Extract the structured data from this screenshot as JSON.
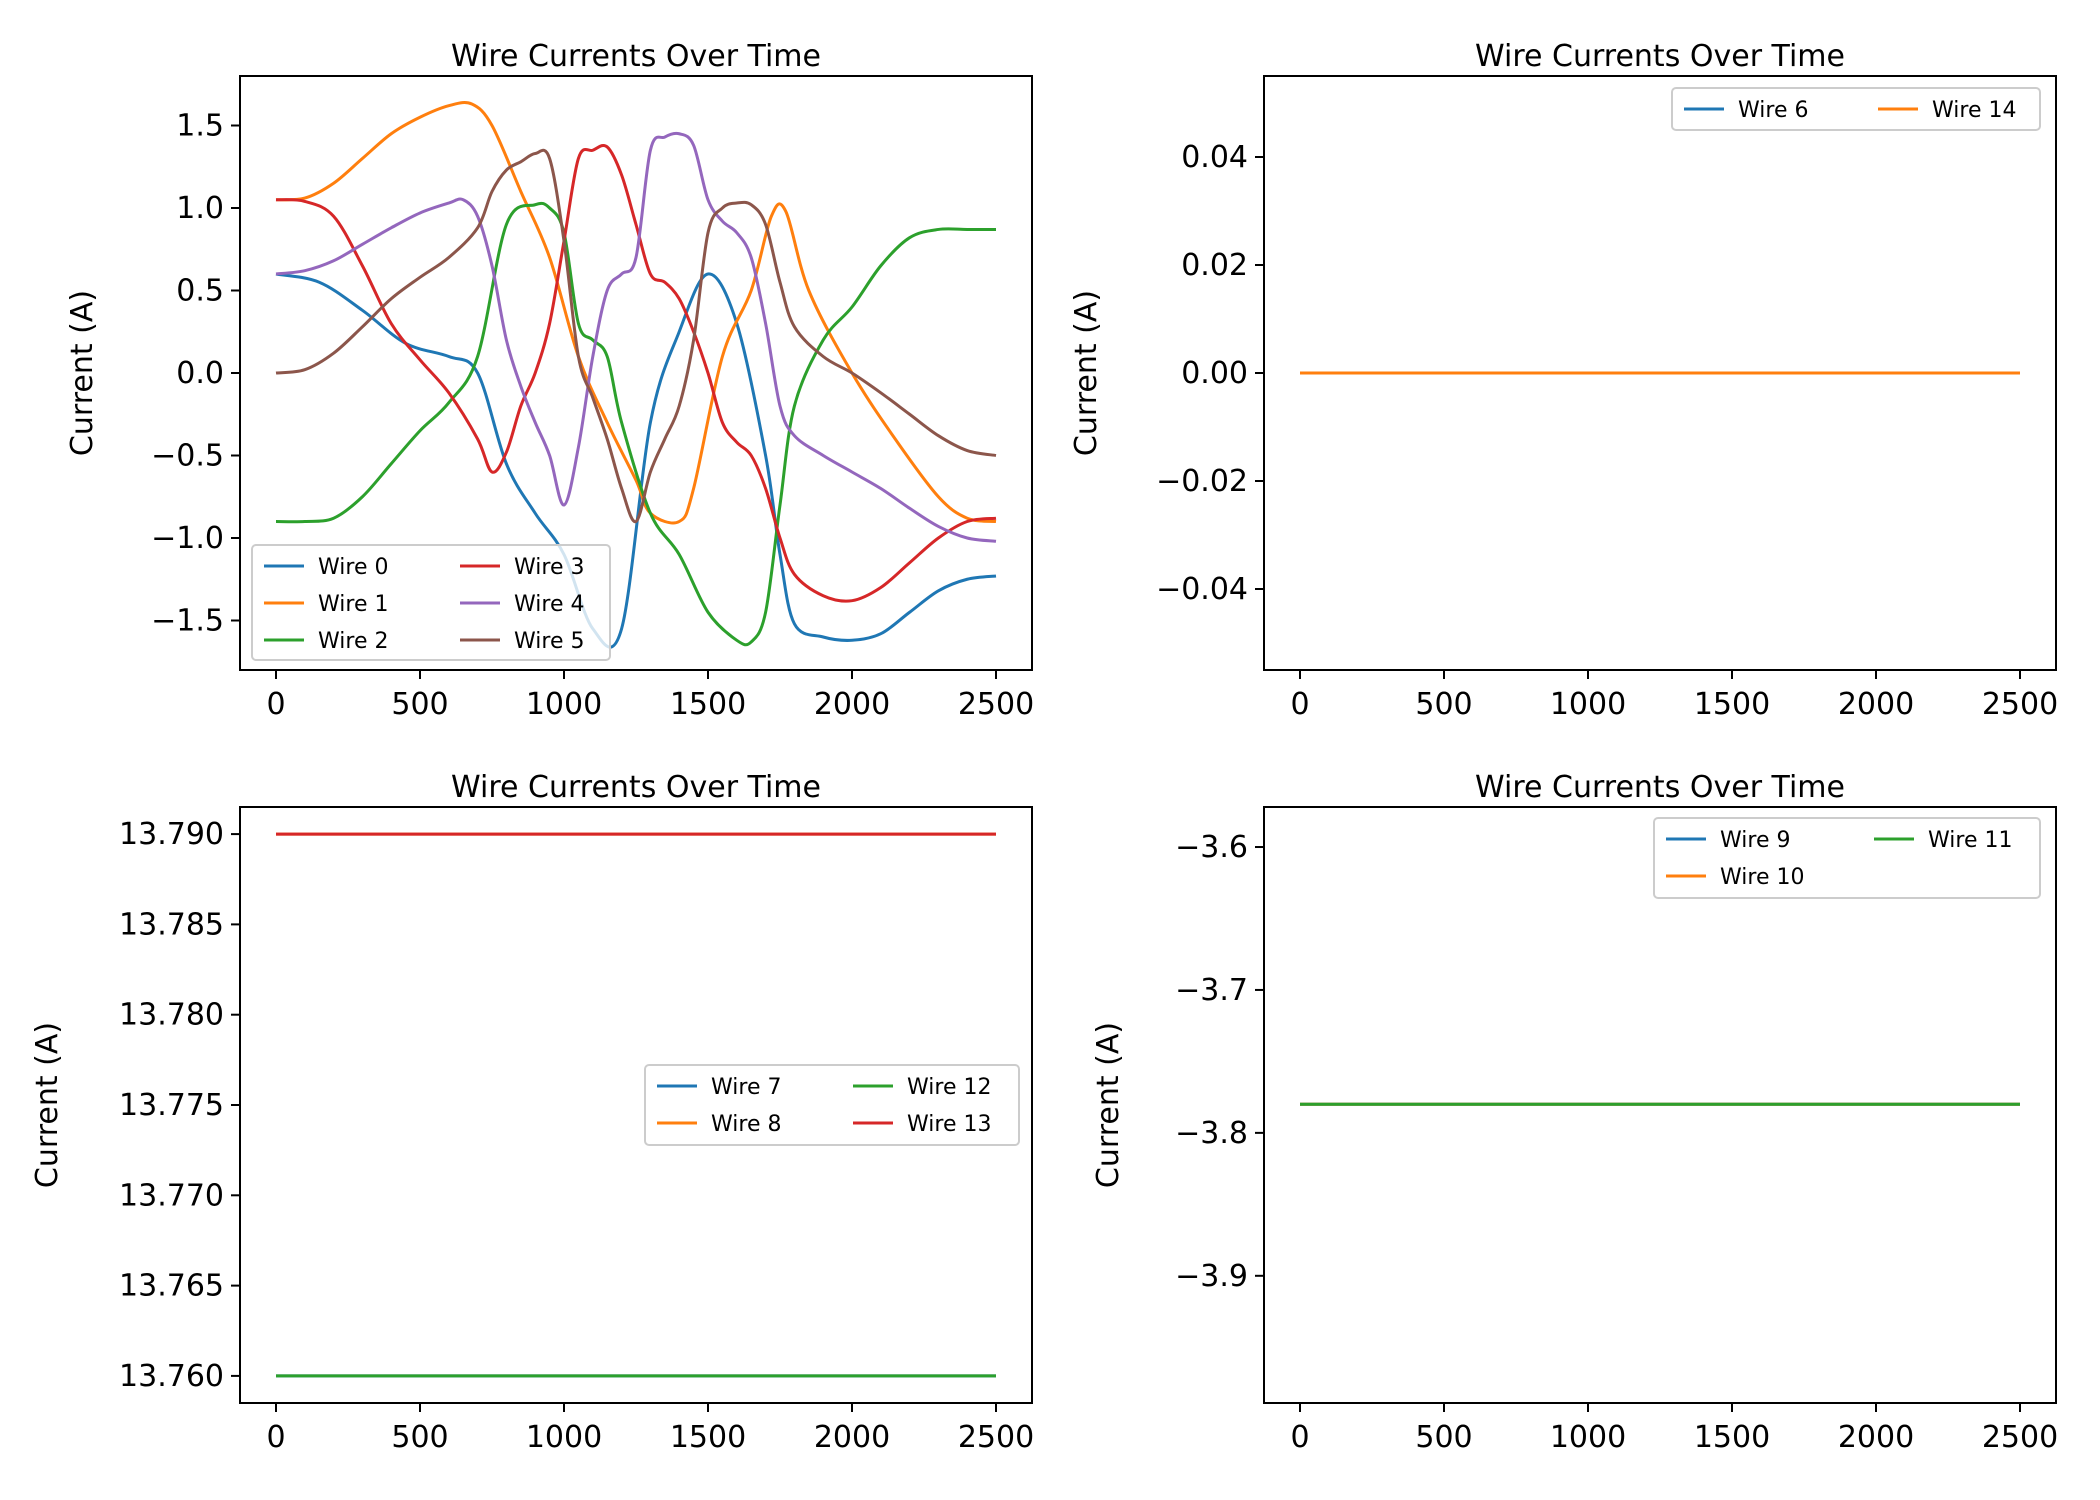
{
  "chart_data": [
    {
      "type": "line",
      "title": "Wire Currents Over Time",
      "xlabel": "",
      "ylabel": "Current (A)",
      "xlim": [
        -125,
        2625
      ],
      "ylim": [
        -1.8,
        1.8
      ],
      "xticks": [
        0,
        500,
        1000,
        1500,
        2000,
        2500
      ],
      "xtick_labels": [
        "0",
        "500",
        "1000",
        "1500",
        "2000",
        "2500"
      ],
      "yticks": [
        -1.5,
        -1.0,
        -0.5,
        0.0,
        0.5,
        1.0,
        1.5
      ],
      "ytick_labels": [
        "−1.5",
        "−1.0",
        "−0.5",
        "0.0",
        "0.5",
        "1.0",
        "1.5"
      ],
      "grid": false,
      "legend_position": "lower-left",
      "legend_columns": 2,
      "series": [
        {
          "name": "Wire 0",
          "color": "#1f77b4",
          "x": [
            0,
            150,
            300,
            450,
            600,
            700,
            800,
            900,
            1000,
            1100,
            1200,
            1300,
            1400,
            1500,
            1600,
            1700,
            1750,
            1800,
            1900,
            2000,
            2100,
            2200,
            2300,
            2400,
            2500
          ],
          "y": [
            0.6,
            0.55,
            0.38,
            0.18,
            0.1,
            0.0,
            -0.55,
            -0.85,
            -1.1,
            -1.55,
            -1.55,
            -0.3,
            0.25,
            0.6,
            0.3,
            -0.5,
            -1.1,
            -1.52,
            -1.6,
            -1.62,
            -1.58,
            -1.45,
            -1.32,
            -1.25,
            -1.23
          ]
        },
        {
          "name": "Wire 1",
          "color": "#ff7f0e",
          "x": [
            0,
            100,
            200,
            300,
            400,
            500,
            600,
            680,
            750,
            850,
            950,
            1050,
            1150,
            1250,
            1300,
            1400,
            1450,
            1550,
            1650,
            1720,
            1770,
            1850,
            2000,
            2150,
            2300,
            2400,
            2500
          ],
          "y": [
            1.05,
            1.06,
            1.15,
            1.3,
            1.45,
            1.55,
            1.62,
            1.63,
            1.5,
            1.1,
            0.7,
            0.1,
            -0.3,
            -0.65,
            -0.85,
            -0.9,
            -0.7,
            0.1,
            0.5,
            0.95,
            0.98,
            0.5,
            0.0,
            -0.4,
            -0.75,
            -0.88,
            -0.9
          ]
        },
        {
          "name": "Wire 2",
          "color": "#2ca02c",
          "x": [
            0,
            100,
            200,
            300,
            400,
            500,
            600,
            700,
            800,
            900,
            950,
            1000,
            1050,
            1100,
            1150,
            1200,
            1300,
            1400,
            1500,
            1600,
            1650,
            1700,
            1750,
            1800,
            1900,
            2000,
            2100,
            2200,
            2300,
            2400,
            2500
          ],
          "y": [
            -0.9,
            -0.9,
            -0.88,
            -0.75,
            -0.55,
            -0.35,
            -0.18,
            0.1,
            0.9,
            1.02,
            1.0,
            0.85,
            0.3,
            0.2,
            0.1,
            -0.3,
            -0.85,
            -1.1,
            -1.45,
            -1.62,
            -1.63,
            -1.45,
            -0.8,
            -0.2,
            0.2,
            0.4,
            0.65,
            0.82,
            0.87,
            0.87,
            0.87
          ]
        },
        {
          "name": "Wire 3",
          "color": "#d62728",
          "x": [
            0,
            100,
            200,
            300,
            400,
            500,
            600,
            700,
            750,
            800,
            850,
            900,
            950,
            1000,
            1050,
            1100,
            1150,
            1200,
            1250,
            1300,
            1350,
            1400,
            1450,
            1500,
            1550,
            1600,
            1650,
            1700,
            1750,
            1800,
            1900,
            2000,
            2100,
            2200,
            2300,
            2400,
            2500
          ],
          "y": [
            1.05,
            1.04,
            0.95,
            0.65,
            0.3,
            0.08,
            -0.12,
            -0.4,
            -0.6,
            -0.48,
            -0.2,
            0.0,
            0.3,
            0.8,
            1.3,
            1.35,
            1.37,
            1.2,
            0.9,
            0.6,
            0.55,
            0.45,
            0.25,
            0.0,
            -0.3,
            -0.42,
            -0.5,
            -0.7,
            -1.0,
            -1.22,
            -1.35,
            -1.38,
            -1.3,
            -1.15,
            -1.0,
            -0.9,
            -0.88
          ]
        },
        {
          "name": "Wire 4",
          "color": "#9467bd",
          "x": [
            0,
            100,
            200,
            300,
            400,
            500,
            600,
            650,
            700,
            750,
            800,
            850,
            900,
            950,
            1000,
            1050,
            1100,
            1150,
            1200,
            1250,
            1300,
            1350,
            1400,
            1450,
            1500,
            1550,
            1600,
            1650,
            1700,
            1750,
            1800,
            1900,
            2000,
            2100,
            2200,
            2300,
            2400,
            2500
          ],
          "y": [
            0.6,
            0.62,
            0.68,
            0.78,
            0.88,
            0.97,
            1.03,
            1.05,
            0.95,
            0.65,
            0.2,
            -0.08,
            -0.3,
            -0.5,
            -0.8,
            -0.45,
            0.1,
            0.5,
            0.6,
            0.7,
            1.35,
            1.43,
            1.45,
            1.38,
            1.05,
            0.92,
            0.85,
            0.7,
            0.3,
            -0.2,
            -0.38,
            -0.5,
            -0.6,
            -0.7,
            -0.82,
            -0.93,
            -1.0,
            -1.02
          ]
        },
        {
          "name": "Wire 5",
          "color": "#8c564b",
          "x": [
            0,
            100,
            200,
            300,
            400,
            500,
            600,
            700,
            750,
            800,
            850,
            900,
            950,
            1000,
            1050,
            1100,
            1150,
            1200,
            1250,
            1300,
            1350,
            1400,
            1450,
            1500,
            1550,
            1600,
            1650,
            1700,
            1750,
            1800,
            1900,
            2000,
            2100,
            2200,
            2300,
            2400,
            2500
          ],
          "y": [
            0.0,
            0.02,
            0.12,
            0.28,
            0.45,
            0.58,
            0.7,
            0.88,
            1.1,
            1.23,
            1.28,
            1.33,
            1.3,
            0.8,
            0.1,
            -0.15,
            -0.4,
            -0.7,
            -0.9,
            -0.6,
            -0.4,
            -0.2,
            0.2,
            0.85,
            1.0,
            1.03,
            1.02,
            0.9,
            0.55,
            0.28,
            0.1,
            0.0,
            -0.12,
            -0.25,
            -0.38,
            -0.47,
            -0.5
          ]
        }
      ]
    },
    {
      "type": "line",
      "title": "Wire Currents Over Time",
      "xlabel": "",
      "ylabel": "Current (A)",
      "xlim": [
        -125,
        2625
      ],
      "ylim": [
        -0.055,
        0.055
      ],
      "xticks": [
        0,
        500,
        1000,
        1500,
        2000,
        2500
      ],
      "xtick_labels": [
        "0",
        "500",
        "1000",
        "1500",
        "2000",
        "2500"
      ],
      "yticks": [
        -0.04,
        -0.02,
        0.0,
        0.02,
        0.04
      ],
      "ytick_labels": [
        "−0.04",
        "−0.02",
        "0.00",
        "0.02",
        "0.04"
      ],
      "grid": false,
      "legend_position": "upper-right",
      "legend_columns": 2,
      "series": [
        {
          "name": "Wire 6",
          "color": "#1f77b4",
          "x": [
            0,
            2500
          ],
          "y": [
            0.0,
            0.0
          ]
        },
        {
          "name": "Wire 14",
          "color": "#ff7f0e",
          "x": [
            0,
            2500
          ],
          "y": [
            0.0,
            0.0
          ]
        }
      ]
    },
    {
      "type": "line",
      "title": "Wire Currents Over Time",
      "xlabel": "",
      "ylabel": "Current (A)",
      "xlim": [
        -125,
        2625
      ],
      "ylim": [
        13.7585,
        13.7915
      ],
      "xticks": [
        0,
        500,
        1000,
        1500,
        2000,
        2500
      ],
      "xtick_labels": [
        "0",
        "500",
        "1000",
        "1500",
        "2000",
        "2500"
      ],
      "yticks": [
        13.76,
        13.765,
        13.77,
        13.775,
        13.78,
        13.785,
        13.79
      ],
      "ytick_labels": [
        "13.760",
        "13.765",
        "13.770",
        "13.775",
        "13.780",
        "13.785",
        "13.790"
      ],
      "grid": false,
      "legend_position": "center-right",
      "legend_columns": 2,
      "series": [
        {
          "name": "Wire 7",
          "color": "#1f77b4",
          "x": [
            0,
            2500
          ],
          "y": [
            13.76,
            13.76
          ]
        },
        {
          "name": "Wire 8",
          "color": "#ff7f0e",
          "x": [
            0,
            2500
          ],
          "y": [
            13.79,
            13.79
          ]
        },
        {
          "name": "Wire 12",
          "color": "#2ca02c",
          "x": [
            0,
            2500
          ],
          "y": [
            13.76,
            13.76
          ]
        },
        {
          "name": "Wire 13",
          "color": "#d62728",
          "x": [
            0,
            2500
          ],
          "y": [
            13.79,
            13.79
          ]
        }
      ]
    },
    {
      "type": "line",
      "title": "Wire Currents Over Time",
      "xlabel": "",
      "ylabel": "Current (A)",
      "xlim": [
        -125,
        2625
      ],
      "ylim": [
        -3.989,
        -3.572
      ],
      "xticks": [
        0,
        500,
        1000,
        1500,
        2000,
        2500
      ],
      "xtick_labels": [
        "0",
        "500",
        "1000",
        "1500",
        "2000",
        "2500"
      ],
      "yticks": [
        -3.9,
        -3.8,
        -3.7,
        -3.6
      ],
      "ytick_labels": [
        "−3.9",
        "−3.8",
        "−3.7",
        "−3.6"
      ],
      "grid": false,
      "legend_position": "upper-right",
      "legend_columns": 2,
      "series": [
        {
          "name": "Wire 9",
          "color": "#1f77b4",
          "x": [
            0,
            2500
          ],
          "y": [
            -3.78,
            -3.78
          ]
        },
        {
          "name": "Wire 10",
          "color": "#ff7f0e",
          "x": [
            0,
            2500
          ],
          "y": [
            -3.78,
            -3.78
          ]
        },
        {
          "name": "Wire 11",
          "color": "#2ca02c",
          "x": [
            0,
            2500
          ],
          "y": [
            -3.78,
            -3.78
          ]
        }
      ]
    }
  ]
}
